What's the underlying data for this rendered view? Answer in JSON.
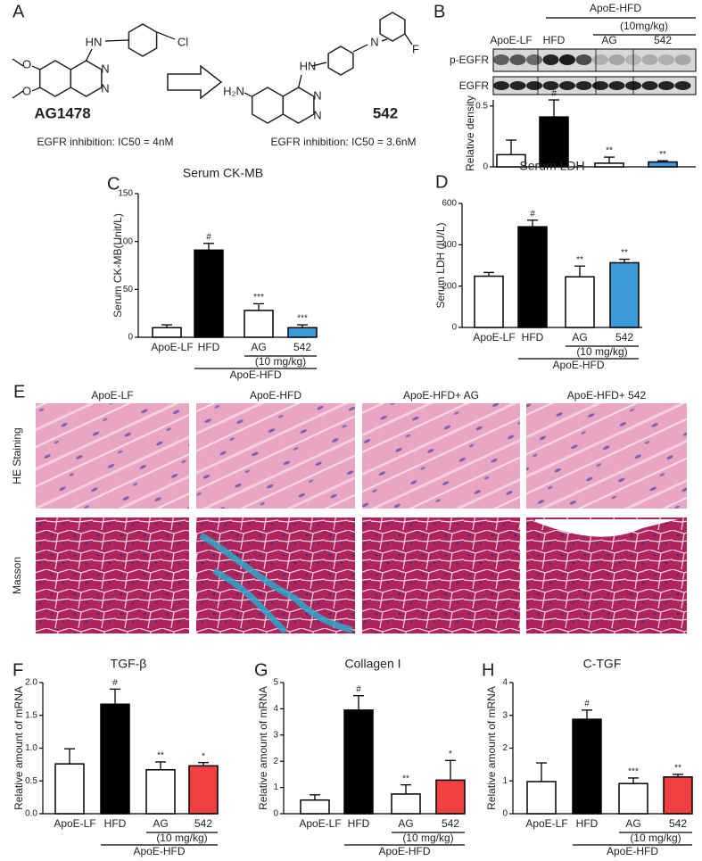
{
  "panel_a": {
    "letter": "A",
    "compounds": [
      {
        "name": "AG1478",
        "activity": "EGFR inhibition: IC50 = 4nM",
        "atoms": [
          "HN",
          "Cl",
          "N",
          "N",
          "O",
          "O"
        ]
      },
      {
        "name": "542",
        "activity": "EGFR inhibition: IC50 = 3.6nM",
        "atoms": [
          "N",
          "F",
          "HN",
          "H₂N",
          "N",
          "N"
        ]
      }
    ]
  },
  "panel_b": {
    "header": [
      "ApoE-HFD",
      "(10mg/kg)"
    ],
    "blots": [
      "p-EGFR",
      "EGFR"
    ]
  },
  "panel_e": {
    "letter": "E",
    "columns": [
      "ApoE-LF",
      "ApoE-HFD",
      "ApoE-HFD+ AG",
      "ApoE-HFD+ 542"
    ],
    "rows": [
      "HE Staining",
      "Masson"
    ]
  },
  "chart_data": [
    {
      "panel": "B",
      "type": "bar",
      "ylabel": "Relative density",
      "categories": [
        "ApoE-LF",
        "HFD",
        "AG",
        "542"
      ],
      "values": [
        0.1,
        0.41,
        0.03,
        0.04
      ],
      "errors": [
        0.12,
        0.14,
        0.05,
        0.01
      ],
      "sig": [
        null,
        "#",
        "**",
        "**"
      ],
      "colors": [
        "#ffffff",
        "#000000",
        "#ffffff",
        "#3a9ad9"
      ],
      "ylim": [
        0,
        0.55
      ],
      "yticks": [
        0,
        0.5
      ]
    },
    {
      "panel": "C",
      "type": "bar",
      "title": "Serum CK-MB",
      "ylabel": "Serum CK-MB(Unit/L)",
      "categories": [
        "ApoE-LF",
        "HFD",
        "AG",
        "542"
      ],
      "values": [
        10,
        91,
        28,
        10
      ],
      "errors": [
        3,
        7,
        7,
        3
      ],
      "sig": [
        null,
        "#",
        "***",
        "***"
      ],
      "colors": [
        "#ffffff",
        "#000000",
        "#ffffff",
        "#3a9ad9"
      ],
      "ylim": [
        0,
        150
      ],
      "yticks": [
        0,
        50,
        100,
        150
      ],
      "group_labels": [
        "(10 mg/kg)",
        "ApoE-HFD"
      ]
    },
    {
      "panel": "D",
      "type": "bar",
      "title": "Serum LDH",
      "ylabel": "Serum LDH (IU/L)",
      "categories": [
        "ApoE-LF",
        "HFD",
        "AG",
        "542"
      ],
      "values": [
        248,
        487,
        245,
        313
      ],
      "errors": [
        18,
        32,
        52,
        17
      ],
      "sig": [
        null,
        "#",
        "**",
        "**"
      ],
      "colors": [
        "#ffffff",
        "#000000",
        "#ffffff",
        "#3a9ad9"
      ],
      "ylim": [
        0,
        600
      ],
      "yticks": [
        0,
        200,
        400,
        600
      ],
      "group_labels": [
        "(10 mg/kg)",
        "ApoE-HFD"
      ]
    },
    {
      "panel": "F",
      "type": "bar",
      "title": "TGF-β",
      "ylabel": "Relative amount of mRNA",
      "categories": [
        "ApoE-LF",
        "HFD",
        "AG",
        "542"
      ],
      "values": [
        0.76,
        1.67,
        0.67,
        0.73
      ],
      "errors": [
        0.23,
        0.23,
        0.12,
        0.05
      ],
      "sig": [
        null,
        "#",
        "**",
        "*"
      ],
      "colors": [
        "#ffffff",
        "#000000",
        "#ffffff",
        "#f04040"
      ],
      "ylim": [
        0,
        2
      ],
      "yticks": [
        {
          "value": 0,
          "label": "0.0"
        },
        0.5,
        {
          "value": 1,
          "label": "1.0"
        },
        1.5,
        {
          "value": 2,
          "label": "2.0"
        }
      ],
      "group_labels": [
        "(10 mg/kg)",
        "ApoE-HFD"
      ]
    },
    {
      "panel": "G",
      "type": "bar",
      "title": "Collagen I",
      "ylabel": "Relative amount of mRNA",
      "categories": [
        "ApoE-LF",
        "HFD",
        "AG",
        "542"
      ],
      "values": [
        0.52,
        3.95,
        0.75,
        1.28
      ],
      "errors": [
        0.2,
        0.55,
        0.35,
        0.75
      ],
      "sig": [
        null,
        "#",
        "**",
        "*"
      ],
      "colors": [
        "#ffffff",
        "#000000",
        "#ffffff",
        "#f04040"
      ],
      "ylim": [
        0,
        5
      ],
      "yticks": [
        0,
        1,
        2,
        3,
        4,
        5
      ],
      "group_labels": [
        "(10 mg/kg)",
        "ApoE-HFD"
      ]
    },
    {
      "panel": "H",
      "type": "bar",
      "title": "C-TGF",
      "ylabel": "Relative amount of mRNA",
      "categories": [
        "ApoE-LF",
        "HFD",
        "AG",
        "542"
      ],
      "values": [
        0.98,
        2.88,
        0.92,
        1.12
      ],
      "errors": [
        0.57,
        0.28,
        0.17,
        0.08
      ],
      "sig": [
        null,
        "#",
        "***",
        "**"
      ],
      "colors": [
        "#ffffff",
        "#000000",
        "#ffffff",
        "#f04040"
      ],
      "ylim": [
        0,
        4
      ],
      "yticks": [
        0,
        1,
        2,
        3,
        4
      ],
      "group_labels": [
        "(10 mg/kg)",
        "ApoE-HFD"
      ]
    }
  ]
}
